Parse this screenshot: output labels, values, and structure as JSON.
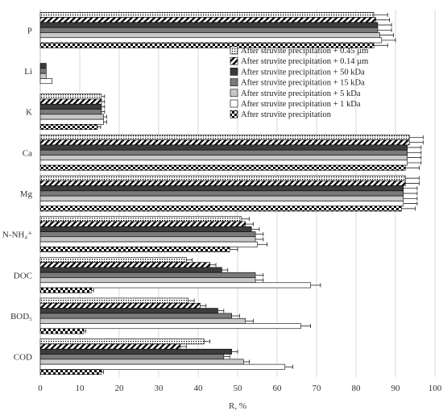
{
  "chart_data": {
    "type": "bar",
    "orientation": "horizontal",
    "title": "",
    "xlabel": "R, %",
    "ylabel": "",
    "xlim": [
      0,
      100
    ],
    "xticks": [
      0,
      10,
      20,
      30,
      40,
      50,
      60,
      70,
      80,
      90,
      100
    ],
    "grid": true,
    "legend_position": "top-right",
    "categories": [
      "P",
      "Li",
      "K",
      "Ca",
      "Mg",
      "N-NH₄⁺",
      "DOC",
      "BOD₅",
      "COD"
    ],
    "series": [
      {
        "name": "After struvite precipitation + 0.45 µm",
        "pattern": "dots",
        "values": [
          84.5,
          0,
          15.5,
          93.5,
          92.5,
          51,
          37,
          37.5,
          41.5
        ],
        "errors": [
          3.5,
          0,
          0.8,
          3.5,
          3.5,
          2,
          1.5,
          1.5,
          1.5
        ]
      },
      {
        "name": "After struvite precipitation + 0.14 µm",
        "pattern": "diagonal",
        "values": [
          85,
          0,
          15.5,
          93.5,
          92.5,
          52,
          43,
          40.5,
          35.5
        ],
        "errors": [
          3.5,
          0,
          0.8,
          3.5,
          3.5,
          2,
          1.5,
          1.5,
          1.5
        ]
      },
      {
        "name": "After struvite precipitation + 50 kDa",
        "pattern": "solid-dark",
        "values": [
          85.5,
          1.5,
          15.5,
          93,
          92,
          53.5,
          46,
          45,
          48.5
        ],
        "errors": [
          3.5,
          0,
          0.8,
          3.5,
          3.5,
          2,
          1.5,
          1.5,
          1.5
        ]
      },
      {
        "name": "After struvite precipitation + 15 kDa",
        "pattern": "solid-gray",
        "values": [
          85.5,
          1.5,
          15.5,
          93,
          92,
          54.5,
          54.5,
          48.5,
          46.5
        ],
        "errors": [
          3.5,
          0,
          0.8,
          3.5,
          3.5,
          2,
          2,
          2,
          1.5
        ]
      },
      {
        "name": "After struvite precipitation + 5 kDa",
        "pattern": "solid-light",
        "values": [
          86,
          1.5,
          16,
          93,
          92,
          54.5,
          54.5,
          52,
          51.5
        ],
        "errors": [
          3.5,
          0,
          0.8,
          3.5,
          3.5,
          2,
          2,
          2,
          1.5
        ]
      },
      {
        "name": "After struvite precipitation + 1 kDa",
        "pattern": "white",
        "values": [
          86.5,
          3,
          16,
          93,
          92,
          55,
          68.5,
          66,
          62
        ],
        "errors": [
          3.5,
          0,
          0.8,
          3.5,
          3.5,
          2.5,
          2.5,
          2.5,
          2
        ]
      },
      {
        "name": "After struvite precipitation",
        "pattern": "checker",
        "values": [
          84.5,
          0,
          14.5,
          92.5,
          91.5,
          48,
          13,
          11,
          15.5
        ],
        "errors": [
          3.5,
          0,
          0.8,
          3.5,
          3.5,
          2,
          0.5,
          0.5,
          0.5
        ]
      }
    ]
  }
}
